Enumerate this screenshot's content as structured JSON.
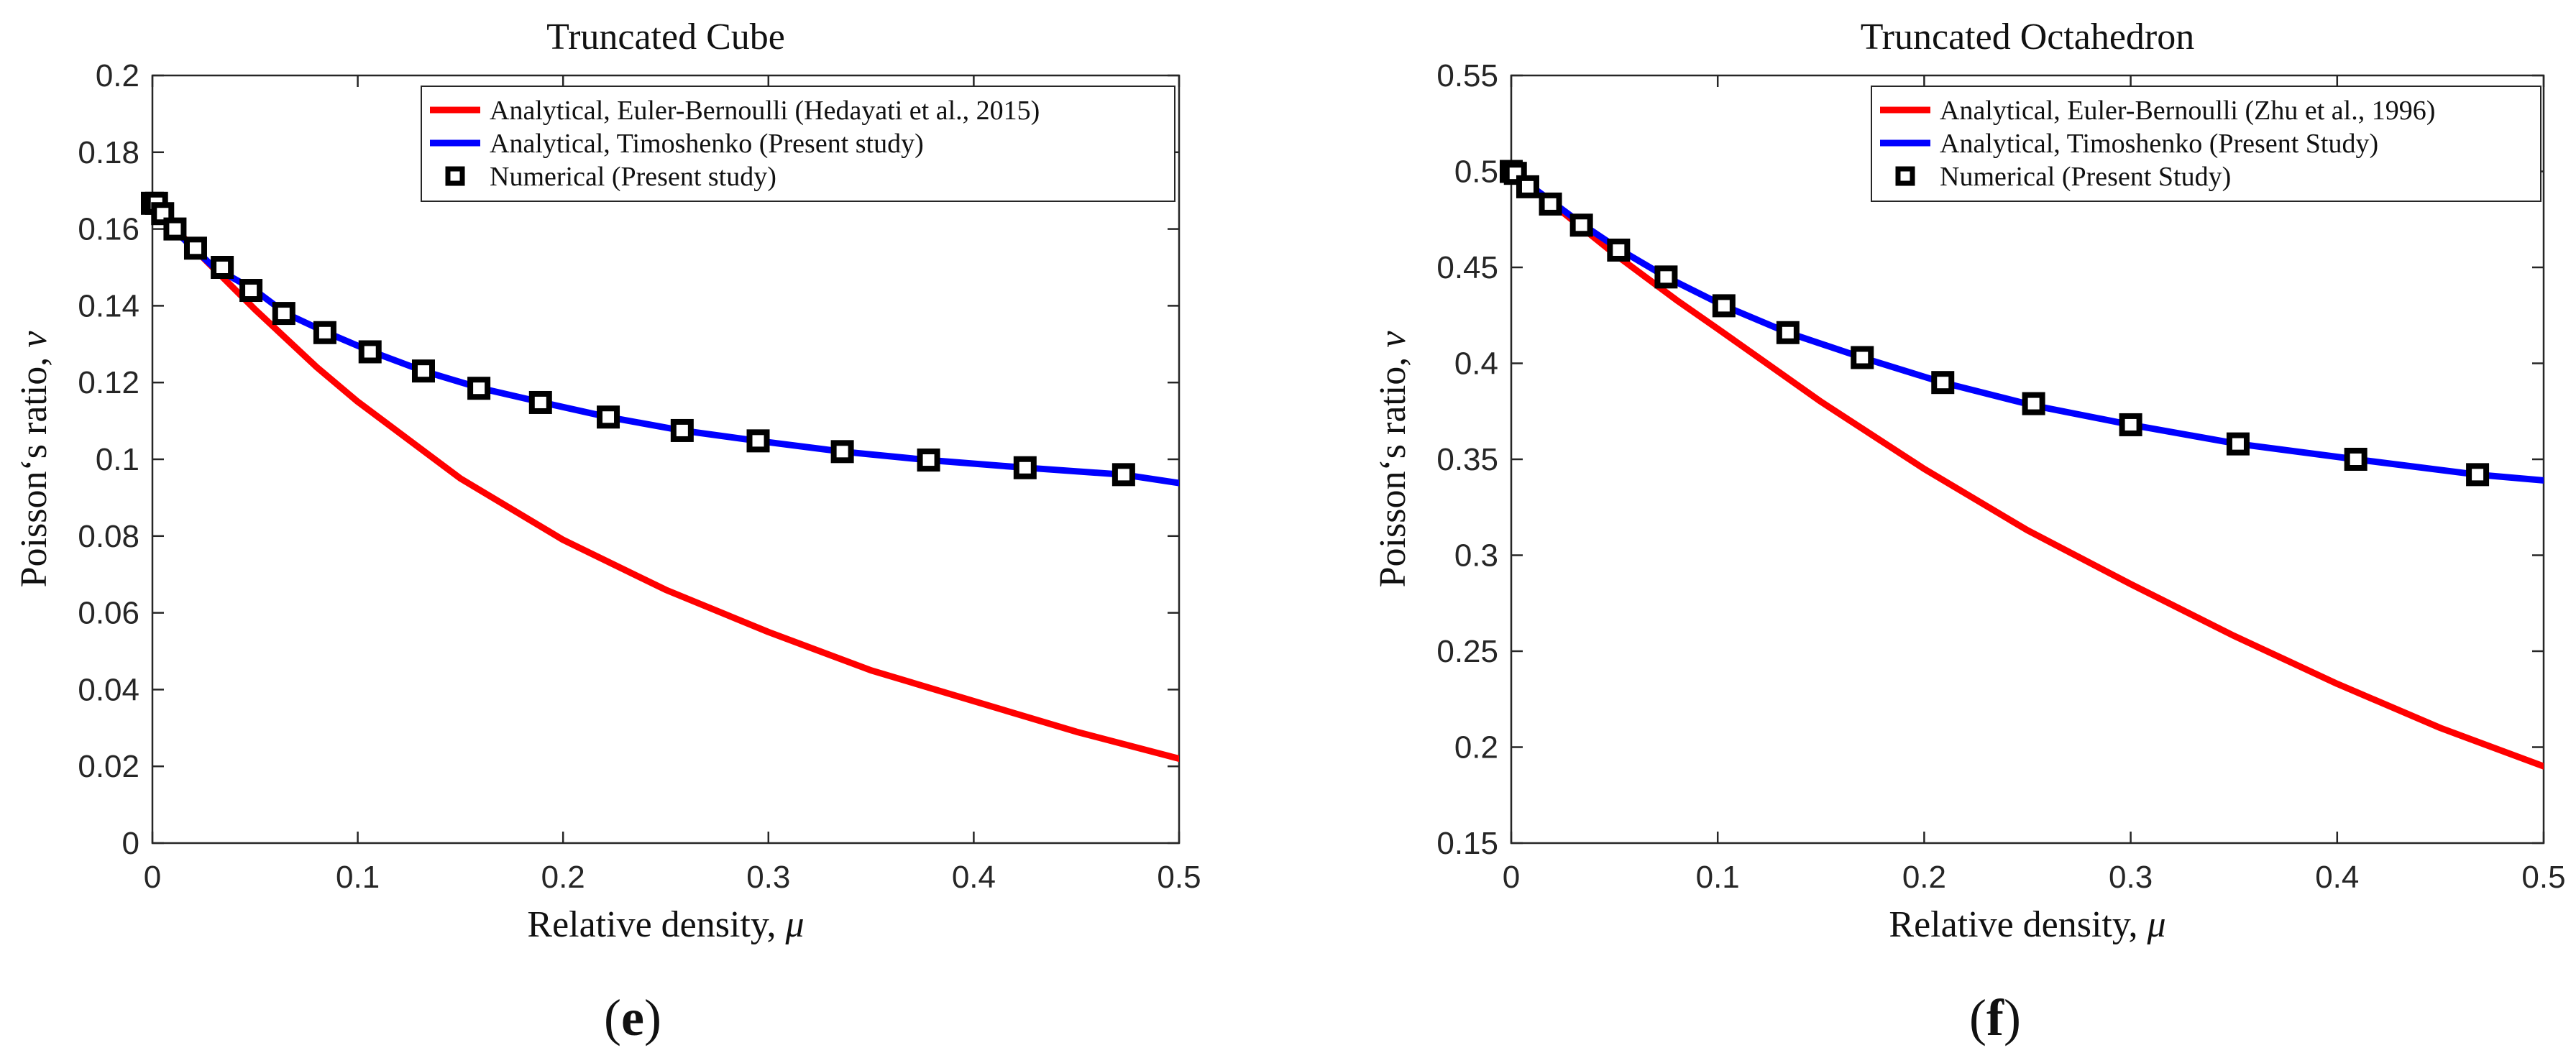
{
  "colors": {
    "analytical_euler": "#ff0000",
    "analytical_timoshenko": "#0000ff",
    "numerical": "#000000",
    "axes": "#262626"
  },
  "chart_data": [
    {
      "id": "e",
      "type": "line",
      "panel_label": {
        "open": "(",
        "letter": "e",
        "close": ")"
      },
      "title": "Truncated Cube",
      "xlabel": "Relative density, ",
      "xlabel_symbol": "μ",
      "ylabel": "Poisson‘s ratio, ",
      "ylabel_symbol": "ν",
      "xlim": [
        0,
        0.5
      ],
      "ylim": [
        0,
        0.2
      ],
      "xticks": [
        0,
        0.1,
        0.2,
        0.3,
        0.4,
        0.5
      ],
      "xtick_labels": [
        "0",
        "0.1",
        "0.2",
        "0.3",
        "0.4",
        "0.5"
      ],
      "yticks": [
        0,
        0.02,
        0.04,
        0.06,
        0.08,
        0.1,
        0.12,
        0.14,
        0.16,
        0.18,
        0.2
      ],
      "ytick_labels": [
        "0",
        "0.02",
        "0.04",
        "0.06",
        "0.08",
        "0.1",
        "0.12",
        "0.14",
        "0.16",
        "0.18",
        "0.2"
      ],
      "legend_position": "top-right",
      "series": [
        {
          "name": "Analytical, Euler-Bernoulli (Hedayati et al., 2015)",
          "kind": "line",
          "color": "#ff0000",
          "x": [
            0,
            0.02,
            0.05,
            0.08,
            0.1,
            0.15,
            0.2,
            0.25,
            0.3,
            0.35,
            0.4,
            0.45,
            0.5
          ],
          "y": [
            0.1667,
            0.155,
            0.139,
            0.124,
            0.115,
            0.095,
            0.079,
            0.066,
            0.055,
            0.045,
            0.037,
            0.029,
            0.022
          ]
        },
        {
          "name": "Analytical, Timoshenko (Present study)",
          "kind": "line",
          "color": "#0000ff",
          "x": [
            0,
            0.01,
            0.02,
            0.03,
            0.05,
            0.065,
            0.085,
            0.107,
            0.132,
            0.16,
            0.19,
            0.222,
            0.258,
            0.295,
            0.336,
            0.378,
            0.425,
            0.473,
            0.5
          ],
          "y": [
            0.1667,
            0.16,
            0.155,
            0.15,
            0.144,
            0.138,
            0.133,
            0.128,
            0.123,
            0.1185,
            0.1148,
            0.111,
            0.1075,
            0.1048,
            0.102,
            0.0998,
            0.0978,
            0.096,
            0.0938
          ]
        },
        {
          "name": "Numerical (Present study)",
          "kind": "marker",
          "color": "#000000",
          "x": [
            0,
            0.002,
            0.005,
            0.011,
            0.021,
            0.034,
            0.048,
            0.064,
            0.084,
            0.106,
            0.132,
            0.159,
            0.189,
            0.222,
            0.258,
            0.295,
            0.336,
            0.378,
            0.425,
            0.473
          ],
          "y": [
            0.1667,
            0.1667,
            0.164,
            0.16,
            0.155,
            0.15,
            0.144,
            0.138,
            0.133,
            0.128,
            0.123,
            0.1185,
            0.1148,
            0.111,
            0.1075,
            0.1048,
            0.102,
            0.0998,
            0.0978,
            0.096
          ]
        }
      ]
    },
    {
      "id": "f",
      "type": "line",
      "panel_label": {
        "open": "(",
        "letter": "f",
        "close": ")"
      },
      "title": "Truncated Octahedron",
      "xlabel": "Relative density, ",
      "xlabel_symbol": "μ",
      "ylabel": "Poisson‘s ratio, ",
      "ylabel_symbol": "ν",
      "xlim": [
        0,
        0.5
      ],
      "ylim": [
        0.15,
        0.55
      ],
      "xticks": [
        0,
        0.1,
        0.2,
        0.3,
        0.4,
        0.5
      ],
      "xtick_labels": [
        "0",
        "0.1",
        "0.2",
        "0.3",
        "0.4",
        "0.5"
      ],
      "yticks": [
        0.15,
        0.2,
        0.25,
        0.3,
        0.35,
        0.4,
        0.45,
        0.5,
        0.55
      ],
      "ytick_labels": [
        "0.15",
        "0.2",
        "0.25",
        "0.3",
        "0.35",
        "0.4",
        "0.45",
        "0.5",
        "0.55"
      ],
      "legend_position": "top-right",
      "series": [
        {
          "name": "Analytical, Euler-Bernoulli (Zhu et al., 1996)",
          "kind": "line",
          "color": "#ff0000",
          "x": [
            0,
            0.02,
            0.05,
            0.08,
            0.1,
            0.15,
            0.2,
            0.25,
            0.3,
            0.35,
            0.4,
            0.45,
            0.5
          ],
          "y": [
            0.5,
            0.483,
            0.457,
            0.433,
            0.418,
            0.38,
            0.345,
            0.313,
            0.285,
            0.258,
            0.233,
            0.21,
            0.19
          ]
        },
        {
          "name": "Analytical, Timoshenko (Present Study)",
          "kind": "line",
          "color": "#0000ff",
          "x": [
            0,
            0.01,
            0.02,
            0.035,
            0.053,
            0.075,
            0.103,
            0.134,
            0.17,
            0.209,
            0.253,
            0.3,
            0.352,
            0.409,
            0.468,
            0.5
          ],
          "y": [
            0.5,
            0.492,
            0.484,
            0.472,
            0.459,
            0.445,
            0.43,
            0.416,
            0.403,
            0.39,
            0.378,
            0.368,
            0.358,
            0.35,
            0.342,
            0.339
          ]
        },
        {
          "name": "Numerical (Present Study)",
          "kind": "marker",
          "color": "#000000",
          "x": [
            0,
            0.002,
            0.008,
            0.019,
            0.034,
            0.052,
            0.075,
            0.103,
            0.134,
            0.17,
            0.209,
            0.253,
            0.3,
            0.352,
            0.409,
            0.468
          ],
          "y": [
            0.5,
            0.499,
            0.492,
            0.483,
            0.472,
            0.459,
            0.445,
            0.43,
            0.416,
            0.403,
            0.39,
            0.379,
            0.368,
            0.358,
            0.35,
            0.342
          ]
        }
      ]
    }
  ]
}
